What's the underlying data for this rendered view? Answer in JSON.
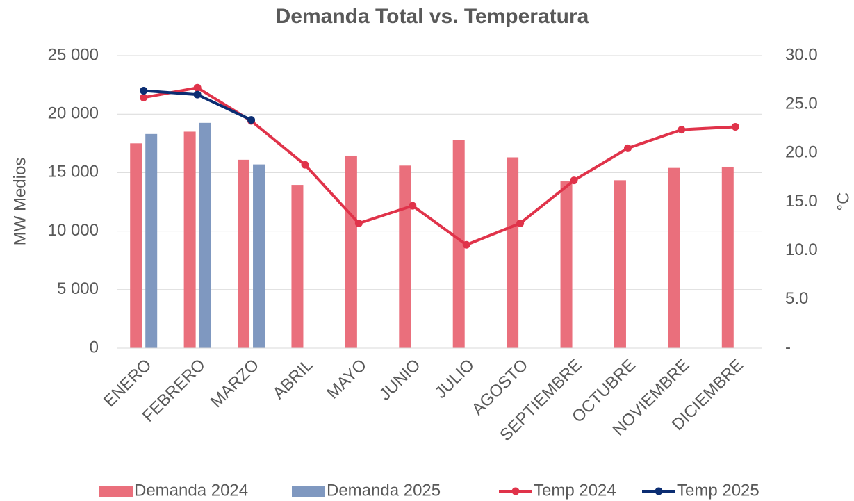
{
  "chart_data": {
    "type": "bar_line",
    "title": "Demanda Total vs. Temperatura",
    "y_label": "MW Medios",
    "y2_label": "°C",
    "categories": [
      "ENERO",
      "FEBRERO",
      "MARZO",
      "ABRIL",
      "MAYO",
      "JUNIO",
      "JULIO",
      "AGOSTO",
      "SEPTIEMBRE",
      "OCTUBRE",
      "NOVIEMBRE",
      "DICIEMBRE"
    ],
    "series": [
      {
        "name": "Demanda 2024",
        "type": "bar",
        "color": "#ea6f7c",
        "values": [
          17500,
          18500,
          16100,
          13950,
          16450,
          15600,
          17800,
          16300,
          14250,
          14350,
          15400,
          15500
        ]
      },
      {
        "name": "Demanda 2025",
        "type": "bar",
        "color": "#7f98c0",
        "values": [
          18300,
          19250,
          15700,
          null,
          null,
          null,
          null,
          null,
          null,
          null,
          null,
          null
        ]
      },
      {
        "name": "Temp 2024",
        "type": "line",
        "axis": "y2",
        "color": "#e0334a",
        "values": [
          25.7,
          26.7,
          23.3,
          18.8,
          12.8,
          14.6,
          10.6,
          12.8,
          17.2,
          20.5,
          22.4,
          22.7
        ]
      },
      {
        "name": "Temp 2025",
        "type": "line",
        "axis": "y2",
        "color": "#0b2d72",
        "values": [
          26.4,
          26.0,
          23.4,
          null,
          null,
          null,
          null,
          null,
          null,
          null,
          null,
          null
        ]
      }
    ],
    "ylim": [
      0,
      25000
    ],
    "yticks": [
      0,
      {
        "value": 5000,
        "label": "5 000"
      },
      {
        "value": 10000,
        "label": "10 000"
      },
      {
        "value": 15000,
        "label": "15 000"
      },
      {
        "value": 20000,
        "label": "20 000"
      },
      {
        "value": 25000,
        "label": "25 000"
      }
    ],
    "y2lim": [
      0,
      30
    ],
    "y2ticks": [
      {
        "value": 0,
        "label": "-"
      },
      {
        "value": 5,
        "label": "5.0"
      },
      {
        "value": 10,
        "label": "10.0"
      },
      {
        "value": 15,
        "label": "15.0"
      },
      {
        "value": 20,
        "label": "20.0"
      },
      {
        "value": 25,
        "label": "25.0"
      },
      {
        "value": 30,
        "label": "30.0"
      }
    ],
    "grid": true,
    "legend": "bottom"
  }
}
